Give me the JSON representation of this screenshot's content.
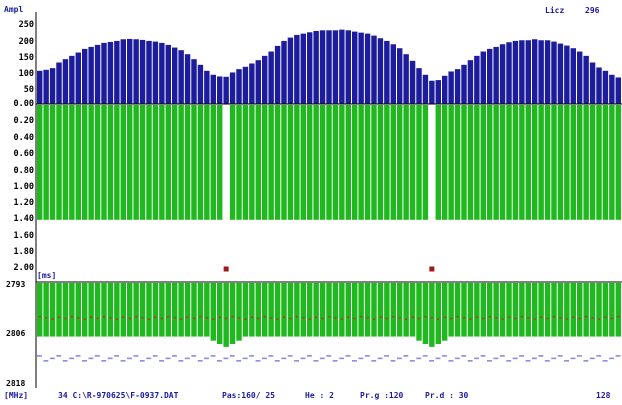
{
  "header": {
    "amp_label": "Ampl",
    "count_label": "Licz",
    "count_value": "296"
  },
  "amp_axis": {
    "ticks": [
      "250",
      "200",
      "150",
      "100",
      "50",
      "0.00"
    ]
  },
  "time_axis": {
    "ticks": [
      "0.20",
      "0.40",
      "0.60",
      "0.80",
      "1.00",
      "1.20",
      "1.40",
      "1.60",
      "1.80",
      "2.00"
    ]
  },
  "ms_panel": {
    "unit_label": "[ms]",
    "top_value": "2793",
    "mid_value": "2806",
    "bottom_value": "2818"
  },
  "status_bar": {
    "freq_label": "[MHz]",
    "channel_info": "34 C:\\R-970625\\F-0937.DAT",
    "pas_info": "Pas:160/ 25",
    "he_info": "He : 2",
    "prg_info": "Pr.g :120",
    "prd_info": "Pr.d : 30",
    "right_value": "128"
  },
  "colors": {
    "amplitude_bars": "#1c1c9c",
    "green_bars": "#1fb81f",
    "markers": "#a01818",
    "labels": "#1a1aa0",
    "ms_dots": "#8c8ce0",
    "trace_red": "#b83030"
  },
  "chart_data": {
    "type": "bar",
    "title": "",
    "ylabel": "Ampl",
    "ylim": [
      0,
      250
    ],
    "amplitude_series": [
      100,
      103,
      108,
      125,
      135,
      145,
      155,
      166,
      172,
      178,
      184,
      187,
      190,
      195,
      196,
      195,
      193,
      190,
      188,
      184,
      178,
      170,
      162,
      150,
      135,
      118,
      100,
      88,
      83,
      82,
      95,
      105,
      112,
      122,
      132,
      145,
      158,
      175,
      190,
      200,
      208,
      212,
      216,
      220,
      222,
      222,
      222,
      224,
      222,
      218,
      215,
      212,
      206,
      198,
      190,
      180,
      168,
      150,
      130,
      108,
      88,
      70,
      72,
      85,
      98,
      105,
      118,
      132,
      145,
      158,
      166,
      172,
      180,
      186,
      190,
      192,
      192,
      195,
      192,
      192,
      188,
      182,
      176,
      168,
      158,
      145,
      125,
      110,
      100,
      88,
      80
    ],
    "gap_bars": [
      29,
      61
    ],
    "depth_axis_range": [
      0,
      2.0
    ],
    "green_depth": 1.4,
    "marker_positions": [
      29,
      61
    ],
    "marker_depth": 2.0,
    "ms_axis_range": [
      2793,
      2818
    ]
  }
}
